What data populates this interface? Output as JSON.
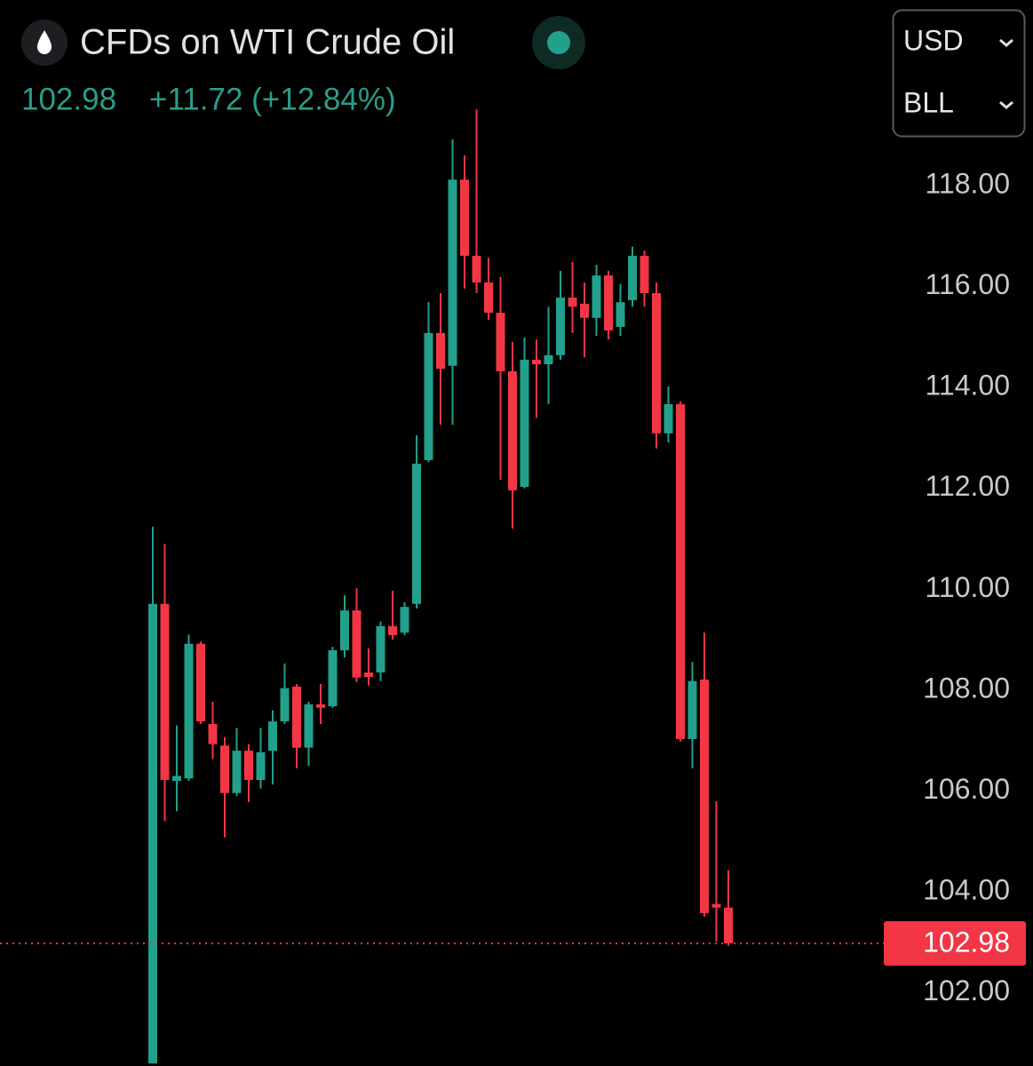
{
  "chart_data": {
    "type": "candlestick",
    "title": "CFDs on WTI Crude Oil",
    "price": "102.98",
    "change": "+11.72 (+12.84%)",
    "currency": "USD",
    "unit": "BLL",
    "up_color": "#22a08b",
    "down_color": "#f23645",
    "open": [
      100.6,
      109.71,
      106.2,
      106.25,
      108.92,
      107.33,
      106.9,
      105.96,
      106.8,
      106.22,
      106.8,
      107.38,
      108.07,
      106.86,
      107.72,
      107.68,
      108.79,
      109.58,
      108.35,
      108.35,
      109.27,
      109.14,
      109.71,
      112.56,
      115.08,
      114.43,
      118.12,
      116.61,
      116.08,
      115.48,
      114.32,
      112.03,
      114.55,
      114.46,
      114.64,
      115.78,
      115.66,
      115.38,
      116.22,
      115.2,
      115.73,
      116.61,
      115.87,
      113.09,
      113.67,
      107.03,
      108.21,
      103.76,
      103.69
    ],
    "high": [
      111.24,
      110.9,
      107.3,
      109.1,
      108.96,
      107.77,
      107.07,
      107.25,
      106.93,
      107.25,
      107.6,
      108.53,
      108.12,
      107.77,
      108.12,
      108.86,
      109.88,
      110.02,
      108.83,
      109.36,
      109.97,
      109.74,
      113.05,
      115.69,
      115.87,
      118.92,
      118.6,
      119.51,
      116.57,
      116.19,
      114.9,
      114.99,
      114.95,
      115.6,
      116.31,
      116.49,
      116.08,
      116.43,
      116.31,
      116.05,
      116.79,
      116.71,
      116.08,
      114.02,
      113.72,
      108.56,
      109.14,
      105.8,
      104.43
    ],
    "low": [
      100.6,
      105.4,
      105.6,
      106.2,
      107.33,
      106.63,
      105.08,
      105.9,
      105.78,
      106.05,
      106.13,
      107.33,
      106.45,
      106.5,
      107.33,
      107.65,
      108.65,
      108.16,
      108.09,
      108.18,
      109.0,
      109.09,
      109.62,
      112.52,
      113.26,
      113.26,
      115.96,
      115.87,
      115.34,
      112.17,
      111.2,
      112.0,
      113.4,
      113.67,
      114.55,
      115.08,
      114.6,
      115.02,
      114.95,
      115.02,
      115.6,
      115.6,
      112.79,
      112.91,
      106.98,
      106.45,
      103.51,
      103.02,
      102.93
    ],
    "close": [
      109.71,
      106.22,
      106.3,
      108.92,
      107.38,
      106.93,
      105.96,
      106.8,
      106.22,
      106.77,
      107.38,
      108.04,
      106.86,
      107.72,
      107.65,
      108.79,
      109.58,
      108.25,
      108.26,
      109.27,
      109.09,
      109.65,
      112.49,
      115.08,
      114.37,
      118.12,
      116.61,
      116.08,
      115.48,
      114.32,
      111.96,
      114.55,
      114.46,
      114.64,
      115.78,
      115.6,
      115.38,
      116.22,
      115.13,
      115.69,
      116.61,
      115.87,
      113.09,
      113.67,
      107.03,
      108.18,
      103.58,
      103.69,
      102.98
    ],
    "last_price": {
      "value": 102.98,
      "label": "102.98"
    },
    "ylim": [
      100.55,
      121.68
    ],
    "yticks": [
      {
        "value": 102,
        "label": "102.00"
      },
      {
        "value": 104,
        "label": "104.00"
      },
      {
        "value": 106,
        "label": "106.00"
      },
      {
        "value": 108,
        "label": "108.00"
      },
      {
        "value": 110,
        "label": "110.00"
      },
      {
        "value": 112,
        "label": "112.00"
      },
      {
        "value": 114,
        "label": "114.00"
      },
      {
        "value": 116,
        "label": "116.00"
      },
      {
        "value": 118,
        "label": "118.00"
      }
    ],
    "grid": false
  }
}
